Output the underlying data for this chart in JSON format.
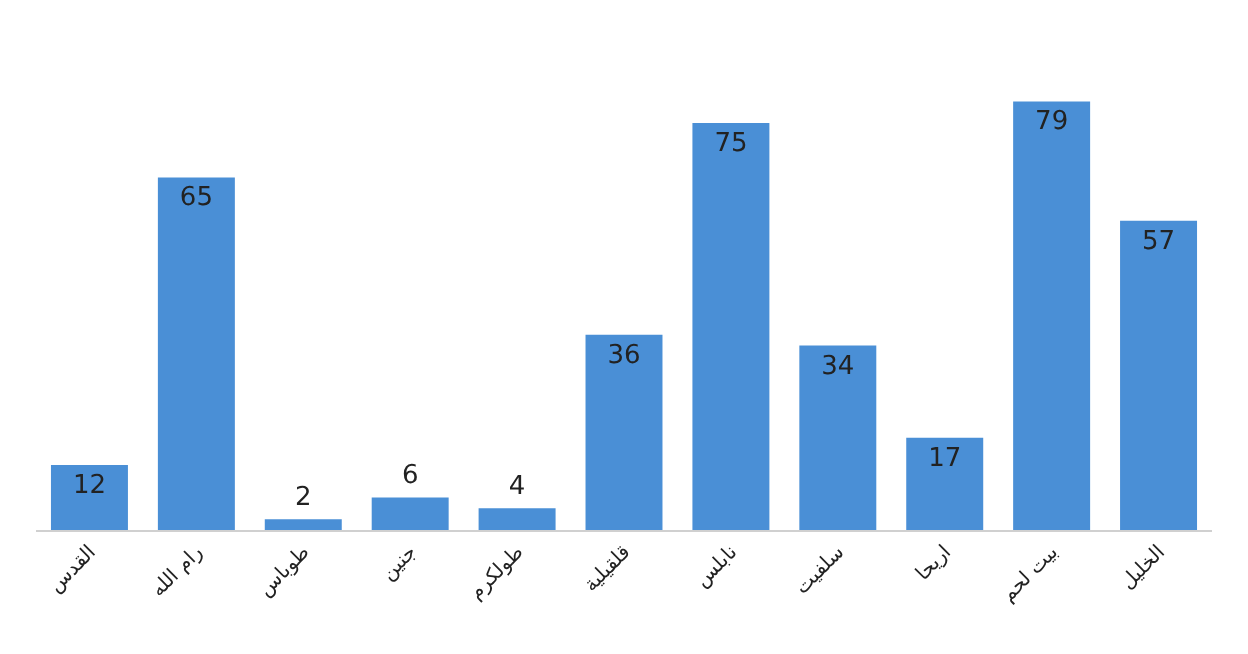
{
  "chart_data": {
    "type": "bar",
    "data_labels": true,
    "categories": [
      "القدس",
      "رام الله",
      "طوباس",
      "جنين",
      "طولكرم",
      "قلقيلية",
      "نابلس",
      "سلفيت",
      "اريحا",
      "بيت لحم",
      "الخليل"
    ],
    "values": [
      12,
      65,
      2,
      6,
      4,
      36,
      75,
      34,
      17,
      79,
      57
    ],
    "color": "#4a8fd6"
  }
}
